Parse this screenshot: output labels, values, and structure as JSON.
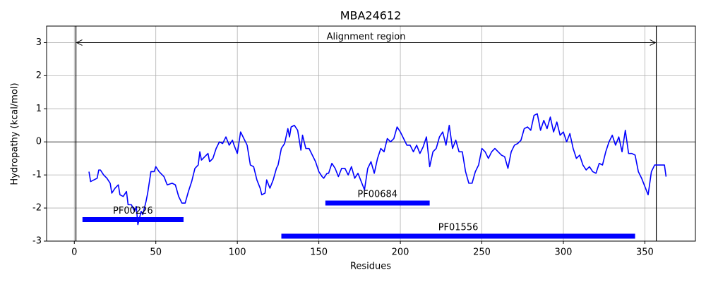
{
  "chart_data": {
    "type": "line",
    "title": "MBA24612",
    "xlabel": "Residues",
    "ylabel": "Hydropathy (kcal/mol)",
    "x": [
      9,
      10,
      12,
      14,
      15,
      16,
      18,
      20,
      22,
      23,
      25,
      27,
      28,
      30,
      32,
      33,
      35,
      37,
      38,
      39,
      41,
      42,
      44,
      45,
      47,
      49,
      50,
      52,
      54,
      55,
      57,
      60,
      62,
      64,
      66,
      68,
      70,
      72,
      74,
      76,
      77,
      78,
      80,
      82,
      83,
      85,
      87,
      89,
      91,
      93,
      95,
      97,
      98,
      100,
      102,
      104,
      106,
      108,
      110,
      112,
      114,
      115,
      117,
      118,
      120,
      122,
      124,
      125,
      127,
      129,
      131,
      132,
      133,
      135,
      137,
      139,
      140,
      142,
      144,
      146,
      148,
      150,
      152,
      153,
      155,
      156,
      158,
      160,
      162,
      164,
      166,
      168,
      170,
      172,
      174,
      176,
      178,
      180,
      182,
      184,
      186,
      188,
      190,
      192,
      194,
      196,
      198,
      200,
      202,
      204,
      206,
      208,
      210,
      212,
      214,
      216,
      218,
      220,
      222,
      224,
      226,
      228,
      230,
      232,
      234,
      236,
      238,
      240,
      242,
      244,
      246,
      248,
      250,
      252,
      254,
      256,
      258,
      260,
      262,
      264,
      266,
      268,
      270,
      272,
      274,
      276,
      278,
      280,
      282,
      284,
      286,
      288,
      290,
      292,
      294,
      296,
      298,
      300,
      302,
      304,
      306,
      308,
      310,
      312,
      314,
      316,
      318,
      320,
      322,
      324,
      326,
      328,
      330,
      332,
      334,
      336,
      338,
      340,
      342,
      344,
      346,
      348,
      350,
      352,
      354,
      356,
      360,
      362,
      363
    ],
    "series": [
      {
        "name": "Hydropathy",
        "color": "#0000ff",
        "values": [
          -0.9,
          -1.2,
          -1.15,
          -1.1,
          -0.85,
          -0.85,
          -1.0,
          -1.1,
          -1.25,
          -1.55,
          -1.4,
          -1.3,
          -1.6,
          -1.65,
          -1.5,
          -1.9,
          -1.9,
          -2.1,
          -1.95,
          -2.5,
          -2.1,
          -2.2,
          -1.8,
          -1.55,
          -0.9,
          -0.9,
          -0.75,
          -0.9,
          -1.0,
          -1.05,
          -1.3,
          -1.25,
          -1.3,
          -1.65,
          -1.85,
          -1.85,
          -1.5,
          -1.2,
          -0.8,
          -0.7,
          -0.3,
          -0.55,
          -0.45,
          -0.35,
          -0.6,
          -0.5,
          -0.2,
          0,
          -0.05,
          0.15,
          -0.1,
          0.05,
          -0.1,
          -0.35,
          0.3,
          0.1,
          -0.1,
          -0.7,
          -0.75,
          -1.15,
          -1.4,
          -1.6,
          -1.55,
          -1.15,
          -1.4,
          -1.15,
          -0.8,
          -0.7,
          -0.2,
          -0.05,
          0.4,
          0.15,
          0.45,
          0.5,
          0.35,
          -0.25,
          0.2,
          -0.2,
          -0.2,
          -0.4,
          -0.6,
          -0.9,
          -1.05,
          -1.1,
          -0.95,
          -0.95,
          -0.65,
          -0.8,
          -1.05,
          -0.8,
          -0.8,
          -1.0,
          -0.75,
          -1.1,
          -0.95,
          -1.2,
          -1.45,
          -0.8,
          -0.6,
          -0.95,
          -0.5,
          -0.2,
          -0.3,
          0.1,
          0.0,
          0.1,
          0.45,
          0.3,
          0.1,
          -0.1,
          -0.1,
          -0.3,
          -0.1,
          -0.35,
          -0.15,
          0.15,
          -0.75,
          -0.3,
          -0.2,
          0.15,
          0.3,
          -0.1,
          0.5,
          -0.2,
          0.05,
          -0.3,
          -0.3,
          -0.9,
          -1.25,
          -1.25,
          -0.9,
          -0.7,
          -0.2,
          -0.3,
          -0.5,
          -0.3,
          -0.2,
          -0.3,
          -0.4,
          -0.45,
          -0.8,
          -0.3,
          -0.1,
          -0.05,
          0.05,
          0.4,
          0.45,
          0.35,
          0.8,
          0.85,
          0.35,
          0.65,
          0.4,
          0.75,
          0.3,
          0.6,
          0.2,
          0.3,
          0.0,
          0.25,
          -0.2,
          -0.5,
          -0.4,
          -0.7,
          -0.85,
          -0.75,
          -0.9,
          -0.95,
          -0.65,
          -0.7,
          -0.3,
          0.0,
          0.2,
          -0.1,
          0.15,
          -0.3,
          0.35,
          -0.35,
          -0.35,
          -0.4,
          -0.9,
          -1.1,
          -1.35,
          -1.6,
          -0.9,
          -0.7,
          -0.7,
          -0.7,
          -1.05
        ]
      }
    ],
    "features": [
      {
        "name": "PF00226",
        "start": 5,
        "end": 67,
        "y": -2.35,
        "color": "#0000ff"
      },
      {
        "name": "PF00684",
        "start": 154,
        "end": 218,
        "y": -1.85,
        "color": "#0000ff"
      },
      {
        "name": "PF01556",
        "start": 127,
        "end": 344,
        "y": -2.85,
        "color": "#0000ff"
      }
    ],
    "alignment": {
      "label": "Alignment region",
      "start": 1,
      "end": 357,
      "y": 3
    },
    "hlines": [
      0
    ],
    "xlim": [
      -17,
      381
    ],
    "ylim": [
      -3,
      3.5
    ],
    "xticks": [
      0,
      50,
      100,
      150,
      200,
      250,
      300,
      350
    ],
    "yticks": [
      -3,
      -2,
      -1,
      0,
      1,
      2,
      3
    ],
    "grid": true
  }
}
